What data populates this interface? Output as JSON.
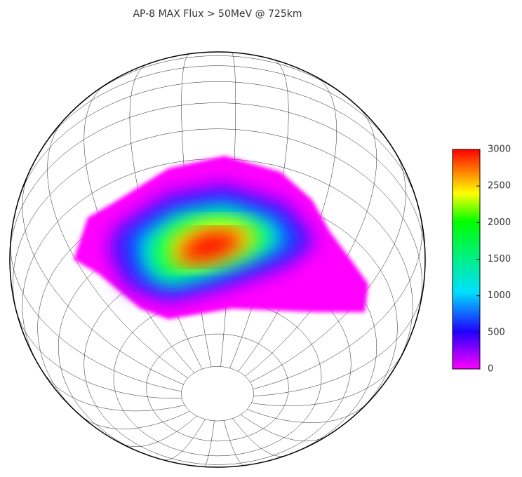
{
  "title": "AP-8 MAX Flux > 50MeV @ 725km",
  "colorbar": {
    "lim": [
      0,
      3000
    ],
    "ticks": [
      0,
      500,
      1000,
      1500,
      2000,
      2500,
      3000
    ]
  }
}
